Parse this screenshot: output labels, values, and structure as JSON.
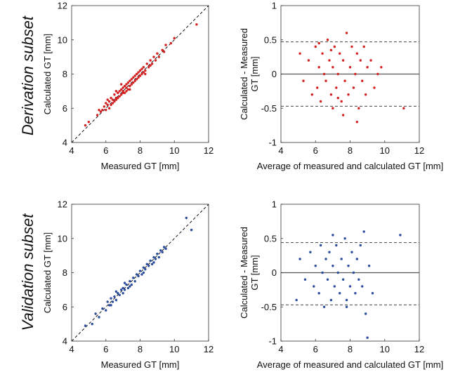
{
  "row_labels": [
    "Derivation subset",
    "Validation subset"
  ],
  "colors": {
    "derivation": "#d42020",
    "validation": "#2a4d9c",
    "axis": "#333333",
    "dash": "#444444"
  },
  "chart_data": [
    {
      "type": "scatter",
      "subset": "Derivation subset",
      "color": "#d42020",
      "xlabel": "Measured GT [mm]",
      "ylabel": "Calculated GT [mm]",
      "xlim": [
        4,
        12
      ],
      "ylim": [
        4,
        12
      ],
      "xticks": [
        4,
        6,
        8,
        10,
        12
      ],
      "yticks": [
        4,
        6,
        8,
        10,
        12
      ],
      "identity_line": true,
      "points": [
        [
          4.8,
          5.0
        ],
        [
          5.0,
          5.2
        ],
        [
          5.5,
          5.6
        ],
        [
          5.6,
          5.9
        ],
        [
          5.7,
          5.8
        ],
        [
          5.8,
          5.9
        ],
        [
          5.9,
          6.1
        ],
        [
          6.0,
          5.9
        ],
        [
          6.0,
          6.3
        ],
        [
          6.1,
          6.2
        ],
        [
          6.2,
          6.0
        ],
        [
          6.2,
          6.4
        ],
        [
          6.3,
          6.2
        ],
        [
          6.3,
          6.6
        ],
        [
          6.4,
          6.5
        ],
        [
          6.4,
          6.3
        ],
        [
          6.5,
          6.4
        ],
        [
          6.5,
          6.8
        ],
        [
          6.6,
          6.6
        ],
        [
          6.6,
          6.5
        ],
        [
          6.7,
          6.9
        ],
        [
          6.7,
          6.6
        ],
        [
          6.8,
          6.7
        ],
        [
          6.8,
          7.0
        ],
        [
          6.9,
          6.8
        ],
        [
          6.9,
          7.1
        ],
        [
          7.0,
          6.9
        ],
        [
          7.0,
          7.2
        ],
        [
          7.0,
          7.0
        ],
        [
          7.1,
          7.3
        ],
        [
          7.1,
          6.9
        ],
        [
          7.2,
          7.2
        ],
        [
          7.2,
          7.4
        ],
        [
          7.3,
          7.1
        ],
        [
          7.3,
          7.5
        ],
        [
          7.4,
          7.3
        ],
        [
          7.4,
          7.6
        ],
        [
          7.5,
          7.4
        ],
        [
          7.5,
          7.7
        ],
        [
          7.6,
          7.5
        ],
        [
          7.6,
          7.8
        ],
        [
          7.7,
          7.6
        ],
        [
          7.7,
          7.9
        ],
        [
          7.8,
          7.7
        ],
        [
          7.8,
          8.0
        ],
        [
          7.9,
          7.8
        ],
        [
          7.9,
          8.1
        ],
        [
          8.0,
          7.9
        ],
        [
          8.0,
          8.2
        ],
        [
          8.1,
          8.0
        ],
        [
          8.1,
          8.3
        ],
        [
          8.2,
          8.1
        ],
        [
          8.2,
          8.4
        ],
        [
          8.3,
          8.2
        ],
        [
          8.4,
          8.6
        ],
        [
          8.5,
          8.4
        ],
        [
          8.6,
          8.8
        ],
        [
          8.7,
          8.6
        ],
        [
          8.8,
          9.0
        ],
        [
          8.9,
          8.8
        ],
        [
          9.0,
          9.2
        ],
        [
          9.1,
          9.0
        ],
        [
          9.3,
          9.4
        ],
        [
          9.4,
          9.3
        ],
        [
          9.5,
          9.7
        ],
        [
          9.8,
          9.8
        ],
        [
          10.0,
          10.1
        ],
        [
          11.3,
          10.9
        ],
        [
          6.1,
          6.5
        ],
        [
          6.9,
          7.4
        ],
        [
          7.4,
          7.1
        ],
        [
          8.3,
          8.0
        ],
        [
          7.2,
          7.0
        ],
        [
          6.6,
          7.0
        ],
        [
          8.6,
          8.5
        ]
      ]
    },
    {
      "type": "scatter",
      "subset": "Derivation subset",
      "color": "#d42020",
      "xlabel": "Average of measured and calculated GT [mm]",
      "ylabel": "Calculated - Measured GT [mm]",
      "xlim": [
        4,
        12
      ],
      "ylim": [
        -1,
        1
      ],
      "xticks": [
        4,
        6,
        8,
        10,
        12
      ],
      "yticks": [
        -1,
        -0.5,
        0,
        0.5,
        1
      ],
      "mean_line": 0,
      "limits_of_agreement": [
        -0.47,
        0.47
      ],
      "points": [
        [
          5.1,
          0.3
        ],
        [
          5.3,
          -0.1
        ],
        [
          5.6,
          0.2
        ],
        [
          5.8,
          -0.3
        ],
        [
          6.0,
          0.4
        ],
        [
          6.1,
          -0.2
        ],
        [
          6.2,
          0.1
        ],
        [
          6.3,
          -0.4
        ],
        [
          6.4,
          0.3
        ],
        [
          6.5,
          0.0
        ],
        [
          6.6,
          -0.1
        ],
        [
          6.7,
          0.5
        ],
        [
          6.8,
          0.2
        ],
        [
          6.9,
          -0.3
        ],
        [
          7.0,
          0.1
        ],
        [
          7.0,
          -0.5
        ],
        [
          7.1,
          0.4
        ],
        [
          7.2,
          -0.2
        ],
        [
          7.3,
          0.0
        ],
        [
          7.4,
          0.3
        ],
        [
          7.5,
          -0.4
        ],
        [
          7.6,
          0.2
        ],
        [
          7.7,
          -0.1
        ],
        [
          7.8,
          0.6
        ],
        [
          7.9,
          -0.3
        ],
        [
          8.0,
          0.1
        ],
        [
          8.1,
          0.4
        ],
        [
          8.2,
          -0.2
        ],
        [
          8.3,
          0.0
        ],
        [
          8.4,
          0.3
        ],
        [
          8.5,
          -0.5
        ],
        [
          8.6,
          0.2
        ],
        [
          8.7,
          -0.1
        ],
        [
          8.8,
          0.4
        ],
        [
          8.9,
          -0.3
        ],
        [
          9.0,
          0.1
        ],
        [
          9.2,
          0.2
        ],
        [
          9.4,
          -0.2
        ],
        [
          9.6,
          0.0
        ],
        [
          9.8,
          0.1
        ],
        [
          11.1,
          -0.5
        ],
        [
          6.2,
          0.45
        ],
        [
          7.6,
          -0.6
        ],
        [
          8.4,
          -0.7
        ],
        [
          6.9,
          0.35
        ],
        [
          7.3,
          -0.35
        ]
      ]
    },
    {
      "type": "scatter",
      "subset": "Validation subset",
      "color": "#2a4d9c",
      "xlabel": "Measured GT [mm]",
      "ylabel": "Calculated GT [mm]",
      "xlim": [
        4,
        12
      ],
      "ylim": [
        4,
        12
      ],
      "xticks": [
        4,
        6,
        8,
        10,
        12
      ],
      "yticks": [
        4,
        6,
        8,
        10,
        12
      ],
      "identity_line": true,
      "points": [
        [
          4.8,
          4.9
        ],
        [
          5.2,
          5.0
        ],
        [
          5.4,
          5.6
        ],
        [
          5.6,
          5.4
        ],
        [
          5.8,
          5.9
        ],
        [
          6.0,
          5.8
        ],
        [
          6.1,
          6.3
        ],
        [
          6.2,
          6.1
        ],
        [
          6.3,
          6.5
        ],
        [
          6.4,
          6.3
        ],
        [
          6.5,
          6.6
        ],
        [
          6.6,
          6.4
        ],
        [
          6.7,
          6.8
        ],
        [
          6.8,
          6.7
        ],
        [
          6.9,
          7.0
        ],
        [
          7.0,
          6.8
        ],
        [
          7.0,
          7.1
        ],
        [
          7.1,
          7.0
        ],
        [
          7.2,
          7.3
        ],
        [
          7.3,
          7.1
        ],
        [
          7.4,
          7.5
        ],
        [
          7.5,
          7.3
        ],
        [
          7.6,
          7.7
        ],
        [
          7.7,
          7.5
        ],
        [
          7.8,
          7.9
        ],
        [
          7.9,
          7.8
        ],
        [
          8.0,
          8.1
        ],
        [
          8.1,
          7.9
        ],
        [
          8.2,
          8.3
        ],
        [
          8.3,
          8.2
        ],
        [
          8.4,
          8.5
        ],
        [
          8.5,
          8.4
        ],
        [
          8.6,
          8.7
        ],
        [
          8.7,
          8.5
        ],
        [
          8.8,
          8.9
        ],
        [
          8.9,
          8.8
        ],
        [
          9.0,
          9.1
        ],
        [
          9.1,
          8.9
        ],
        [
          9.2,
          9.3
        ],
        [
          9.3,
          9.2
        ],
        [
          9.4,
          9.5
        ],
        [
          9.5,
          9.4
        ],
        [
          10.7,
          11.2
        ],
        [
          11.0,
          10.5
        ],
        [
          6.6,
          6.9
        ],
        [
          7.4,
          7.2
        ],
        [
          8.2,
          8.0
        ],
        [
          7.1,
          7.4
        ],
        [
          8.8,
          8.6
        ],
        [
          6.3,
          6.1
        ]
      ]
    },
    {
      "type": "scatter",
      "subset": "Validation subset",
      "color": "#2a4d9c",
      "xlabel": "Average of measured and calculated GT [mm]",
      "ylabel": "Calculated - Measured GT [mm]",
      "xlim": [
        4,
        12
      ],
      "ylim": [
        -1,
        1
      ],
      "xticks": [
        4,
        6,
        8,
        10,
        12
      ],
      "yticks": [
        -1,
        -0.5,
        0,
        0.5,
        1
      ],
      "mean_line": 0,
      "limits_of_agreement": [
        -0.47,
        0.44
      ],
      "points": [
        [
          4.9,
          -0.4
        ],
        [
          5.1,
          0.2
        ],
        [
          5.4,
          -0.1
        ],
        [
          5.7,
          0.3
        ],
        [
          5.9,
          -0.2
        ],
        [
          6.0,
          0.1
        ],
        [
          6.2,
          -0.3
        ],
        [
          6.3,
          0.4
        ],
        [
          6.4,
          0.0
        ],
        [
          6.5,
          -0.5
        ],
        [
          6.6,
          0.2
        ],
        [
          6.7,
          -0.1
        ],
        [
          6.8,
          0.3
        ],
        [
          6.9,
          -0.4
        ],
        [
          7.0,
          0.1
        ],
        [
          7.1,
          -0.2
        ],
        [
          7.2,
          0.4
        ],
        [
          7.3,
          0.0
        ],
        [
          7.4,
          -0.3
        ],
        [
          7.5,
          0.2
        ],
        [
          7.6,
          -0.1
        ],
        [
          7.7,
          0.5
        ],
        [
          7.8,
          -0.4
        ],
        [
          7.9,
          0.1
        ],
        [
          8.0,
          -0.2
        ],
        [
          8.1,
          0.3
        ],
        [
          8.2,
          0.0
        ],
        [
          8.3,
          -0.3
        ],
        [
          8.4,
          0.2
        ],
        [
          8.5,
          -0.1
        ],
        [
          8.6,
          0.4
        ],
        [
          8.7,
          -0.2
        ],
        [
          8.8,
          0.6
        ],
        [
          8.9,
          -0.6
        ],
        [
          9.0,
          -0.95
        ],
        [
          9.1,
          0.1
        ],
        [
          9.3,
          -0.3
        ],
        [
          10.9,
          0.55
        ],
        [
          7.0,
          0.55
        ],
        [
          7.8,
          -0.5
        ]
      ]
    }
  ]
}
